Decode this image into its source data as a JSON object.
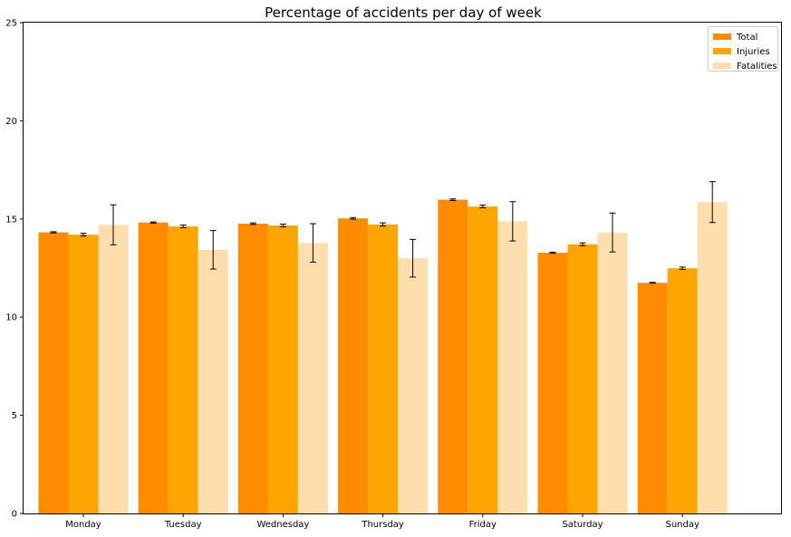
{
  "chart_data": {
    "type": "bar",
    "title": "Percentage of accidents per day of week",
    "xlabel": "",
    "ylabel": "",
    "categories": [
      "Monday",
      "Tuesday",
      "Wednesday",
      "Thursday",
      "Friday",
      "Saturday",
      "Sunday"
    ],
    "series": [
      {
        "name": "Total",
        "color": "#ff8c00",
        "values": [
          14.32,
          14.82,
          14.76,
          15.03,
          15.98,
          13.28,
          11.75
        ],
        "errors": [
          0.03,
          0.03,
          0.04,
          0.04,
          0.04,
          0.03,
          0.02
        ]
      },
      {
        "name": "Injuries",
        "color": "#ffa500",
        "values": [
          14.2,
          14.62,
          14.67,
          14.72,
          15.64,
          13.71,
          12.49
        ],
        "errors": [
          0.07,
          0.07,
          0.07,
          0.08,
          0.07,
          0.07,
          0.06
        ]
      },
      {
        "name": "Fatalities",
        "color": "#ffdead",
        "values": [
          14.7,
          13.43,
          13.78,
          13.0,
          14.88,
          14.31,
          15.86
        ],
        "errors": [
          1.02,
          0.98,
          0.98,
          0.96,
          1.0,
          0.99,
          1.04
        ]
      }
    ],
    "ylim": [
      0,
      25
    ],
    "yticks": [
      0,
      5,
      10,
      15,
      20,
      25
    ],
    "grid": false,
    "legend": "top-right"
  }
}
